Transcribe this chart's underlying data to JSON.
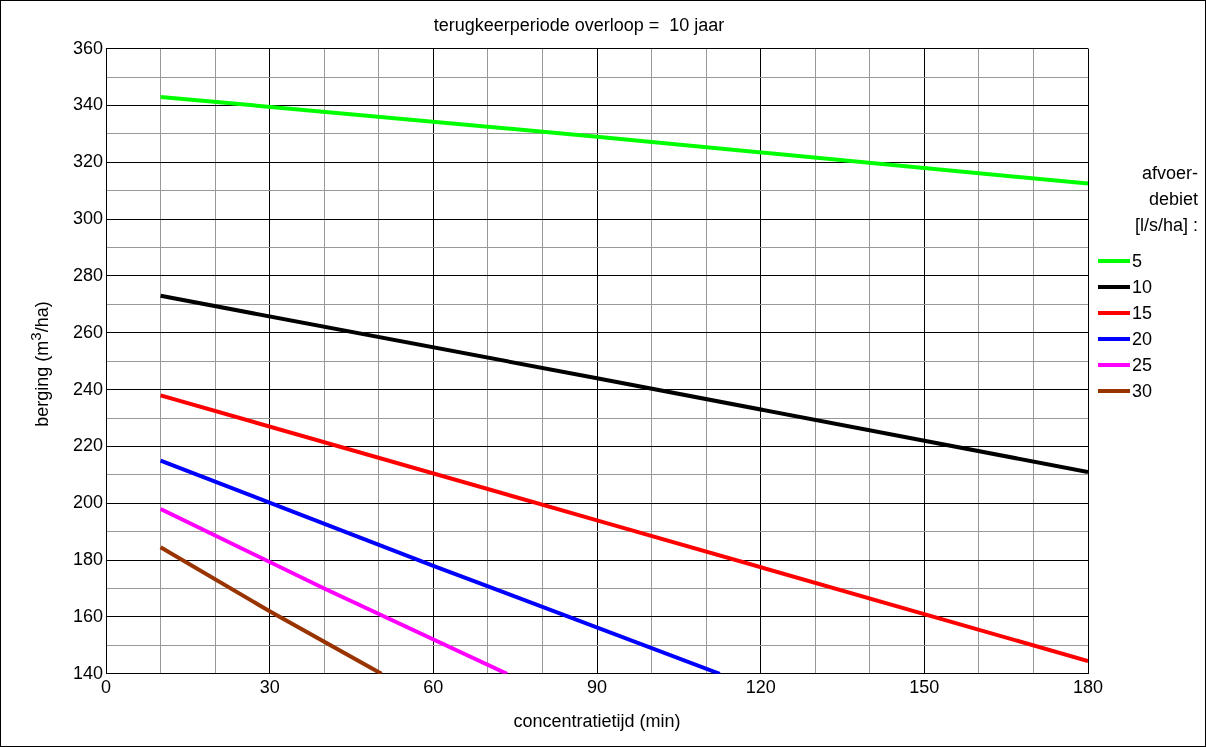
{
  "chart_data": {
    "type": "line",
    "title": "terugkeerperiode overloop =  10 jaar",
    "xlabel": "concentratietijd (min)",
    "ylabel": "berging (m$^{3}$/ha)",
    "legend_title": "afvoer-\ndebiet\n[l/s/ha] :",
    "series": [
      {
        "name": "5",
        "color": "#00ff00",
        "x": [
          10,
          90,
          180
        ],
        "values": [
          343,
          329,
          312.5
        ]
      },
      {
        "name": "10",
        "color": "#000000",
        "x": [
          10,
          90,
          180
        ],
        "values": [
          273,
          244,
          211
        ]
      },
      {
        "name": "15",
        "color": "#ff0000",
        "x": [
          10,
          90,
          180
        ],
        "values": [
          238,
          194,
          144.5
        ]
      },
      {
        "name": "20",
        "color": "#0000ff",
        "x": [
          10,
          60,
          112.5
        ],
        "values": [
          215,
          178,
          140
        ]
      },
      {
        "name": "25",
        "color": "#ff00ff",
        "x": [
          10,
          40,
          73.5
        ],
        "values": [
          198,
          170,
          140
        ]
      },
      {
        "name": "30",
        "color": "#993300",
        "x": [
          10,
          30,
          50.5
        ],
        "values": [
          184.5,
          162,
          140
        ]
      }
    ],
    "xlim": [
      0,
      180
    ],
    "ylim": [
      140,
      360
    ],
    "xticks": [
      0,
      {
        "value": 10,
        "label": null
      },
      {
        "value": 20,
        "label": null
      },
      30,
      {
        "value": 40,
        "label": null
      },
      {
        "value": 50,
        "label": null
      },
      60,
      {
        "value": 70,
        "label": null
      },
      {
        "value": 80,
        "label": null
      },
      90,
      {
        "value": 100,
        "label": null
      },
      {
        "value": 110,
        "label": null
      },
      120,
      {
        "value": 130,
        "label": null
      },
      {
        "value": 140,
        "label": null
      },
      150,
      {
        "value": 160,
        "label": null
      },
      {
        "value": 170,
        "label": null
      },
      180
    ],
    "yticks": [
      140,
      {
        "value": 150,
        "label": null
      },
      160,
      {
        "value": 170,
        "label": null
      },
      180,
      {
        "value": 190,
        "label": null
      },
      200,
      {
        "value": 210,
        "label": null
      },
      220,
      {
        "value": 230,
        "label": null
      },
      240,
      {
        "value": 250,
        "label": null
      },
      260,
      {
        "value": 270,
        "label": null
      },
      280,
      {
        "value": 290,
        "label": null
      },
      300,
      {
        "value": 310,
        "label": null
      },
      320,
      {
        "value": 330,
        "label": null
      },
      340,
      {
        "value": 350,
        "label": null
      },
      360
    ],
    "grid": true,
    "legend": "right",
    "marker": "none",
    "line_style": "solid"
  }
}
